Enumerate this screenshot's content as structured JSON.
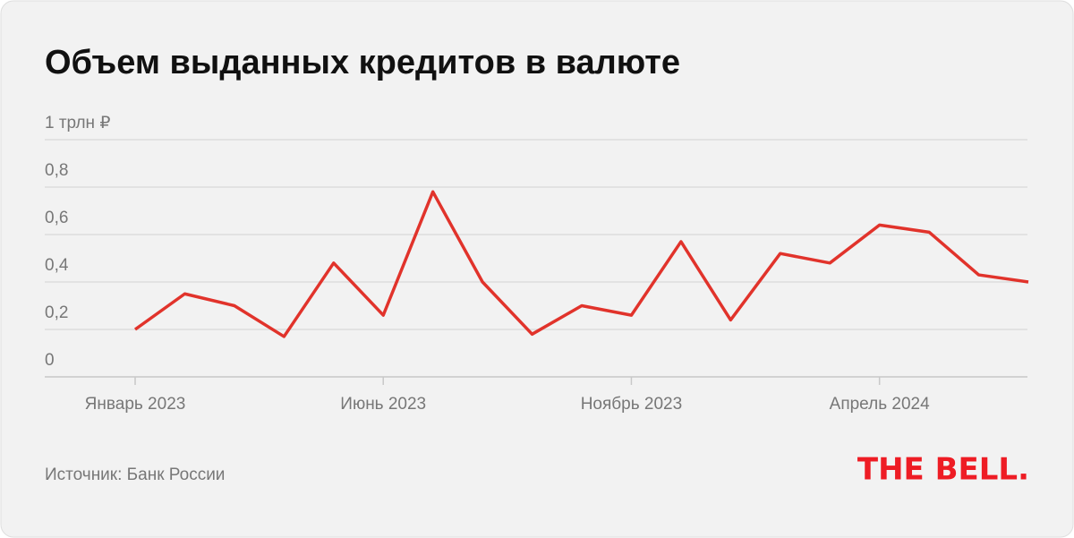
{
  "chart_data": {
    "type": "line",
    "title": "Объем выданных кредитов в валюте",
    "categories": [
      "Январь 2023",
      null,
      null,
      null,
      null,
      "Июнь 2023",
      null,
      null,
      null,
      null,
      "Ноябрь 2023",
      null,
      null,
      null,
      null,
      "Апрель 2024",
      null,
      null,
      null
    ],
    "series": [
      {
        "color": "#e1332b",
        "values": [
          0.2,
          0.35,
          0.3,
          0.17,
          0.48,
          0.26,
          0.78,
          0.4,
          0.18,
          0.3,
          0.26,
          0.57,
          0.24,
          0.52,
          0.48,
          0.64,
          0.61,
          0.43,
          0.4
        ]
      }
    ],
    "ylim": [
      0,
      1
    ],
    "yticks": [
      0,
      {
        "value": 0.2,
        "label": "0,2"
      },
      {
        "value": 0.4,
        "label": "0,4"
      },
      {
        "value": 0.6,
        "label": "0,6"
      },
      {
        "value": 0.8,
        "label": "0,8"
      },
      {
        "value": 1,
        "label": "1 трлн ₽"
      }
    ],
    "grid": true,
    "source": "Источник: Банк России",
    "logo": "THE BELL."
  }
}
